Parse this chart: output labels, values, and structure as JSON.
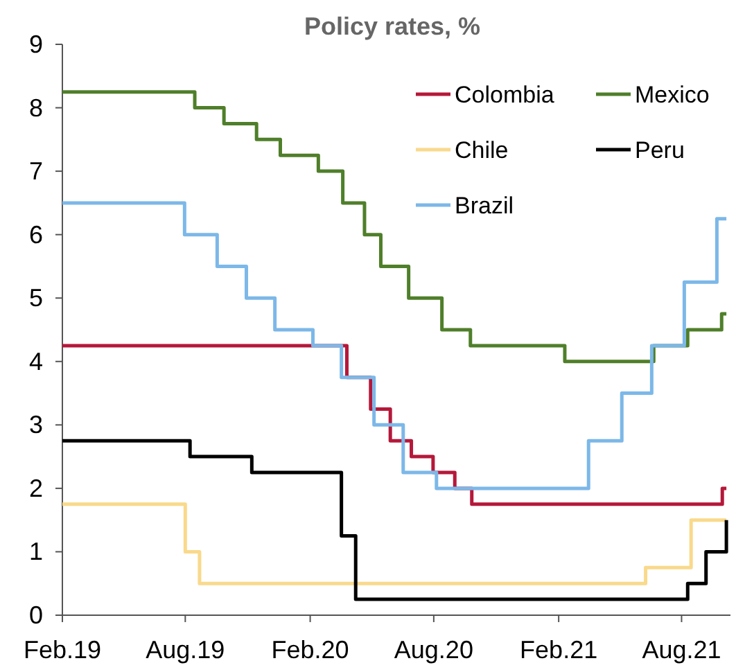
{
  "chart_data": {
    "type": "step",
    "title": "Policy rates, %",
    "xlim": [
      "2019-02-01",
      "2021-10-12"
    ],
    "xticks": [
      {
        "value": "2019-02-01",
        "label": "Feb.19"
      },
      {
        "value": "2019-08-01",
        "label": "Aug.19"
      },
      {
        "value": "2020-02-01",
        "label": "Feb.20"
      },
      {
        "value": "2020-08-01",
        "label": "Aug.20"
      },
      {
        "value": "2021-02-01",
        "label": "Feb.21"
      },
      {
        "value": "2021-08-01",
        "label": "Aug.21"
      }
    ],
    "ylim": [
      0,
      9
    ],
    "yticks": [
      0,
      1,
      2,
      3,
      4,
      5,
      6,
      7,
      8,
      9
    ],
    "grid": false,
    "legend": "top right",
    "marker": "none",
    "line_style": "solid",
    "series": [
      {
        "name": "Colombia",
        "color": "#b5183a",
        "x": [
          "2019-02-01",
          "2020-03-26",
          "2020-04-30",
          "2020-05-29",
          "2020-06-29",
          "2020-07-31",
          "2020-09-01",
          "2020-09-26",
          "2021-09-30",
          "2021-10-06"
        ],
        "values": [
          4.25,
          3.75,
          3.25,
          2.75,
          2.5,
          2.25,
          2.0,
          1.75,
          2.0,
          2.0
        ]
      },
      {
        "name": "Mexico",
        "color": "#4f7f2a",
        "x": [
          "2019-02-01",
          "2019-08-15",
          "2019-09-27",
          "2019-11-14",
          "2019-12-19",
          "2020-02-13",
          "2020-03-20",
          "2020-04-21",
          "2020-05-15",
          "2020-06-25",
          "2020-08-13",
          "2020-09-24",
          "2021-02-10",
          "2021-06-21",
          "2021-08-10",
          "2021-09-29",
          "2021-10-06"
        ],
        "values": [
          8.25,
          8.0,
          7.75,
          7.5,
          7.25,
          7.0,
          6.5,
          6.0,
          5.5,
          5.0,
          4.5,
          4.25,
          4.0,
          4.25,
          4.5,
          4.75,
          4.75
        ]
      },
      {
        "name": "Chile",
        "color": "#f9d98b",
        "x": [
          "2019-02-01",
          "2019-08-01",
          "2019-08-22",
          "2021-06-09",
          "2021-08-15",
          "2021-10-06"
        ],
        "values": [
          1.75,
          1.0,
          0.5,
          0.75,
          1.5,
          1.5
        ]
      },
      {
        "name": "Peru",
        "color": "#000000",
        "x": [
          "2019-02-01",
          "2019-08-08",
          "2019-11-07",
          "2020-03-18",
          "2020-04-08",
          "2021-08-10",
          "2021-09-06",
          "2021-10-06"
        ],
        "values": [
          2.75,
          2.5,
          2.25,
          1.25,
          0.25,
          0.5,
          1.0,
          1.5
        ]
      },
      {
        "name": "Brazil",
        "color": "#7cb8e8",
        "x": [
          "2019-02-01",
          "2019-07-31",
          "2019-09-17",
          "2019-10-30",
          "2019-12-11",
          "2020-02-05",
          "2020-03-18",
          "2020-05-05",
          "2020-06-17",
          "2020-08-05",
          "2021-03-17",
          "2021-05-05",
          "2021-06-18",
          "2021-08-05",
          "2021-09-22",
          "2021-10-06"
        ],
        "values": [
          6.5,
          6.0,
          5.5,
          5.0,
          4.5,
          4.25,
          3.75,
          3.0,
          2.25,
          2.0,
          2.75,
          3.5,
          4.25,
          5.25,
          6.25,
          6.25
        ]
      }
    ]
  }
}
